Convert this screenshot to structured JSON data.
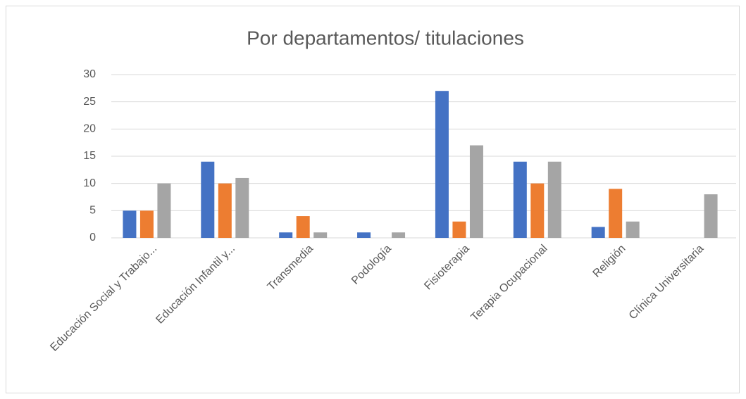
{
  "chart_data": {
    "type": "bar",
    "title": "Por departamentos/ titulaciones",
    "categories": [
      "Educación Social y Trabajo...",
      "Educación Infantil y...",
      "Transmedia",
      "Podología",
      "Fisioterapia",
      "Terapia Ocupacional",
      "Religión",
      "Clínica Universitaria"
    ],
    "series": [
      {
        "color": "#4472c4",
        "values": [
          5,
          14,
          1,
          1,
          27,
          14,
          2,
          0
        ]
      },
      {
        "color": "#ed7d31",
        "values": [
          5,
          10,
          4,
          0,
          3,
          10,
          9,
          0
        ]
      },
      {
        "color": "#a5a5a5",
        "values": [
          10,
          11,
          1,
          1,
          17,
          14,
          3,
          8
        ]
      }
    ],
    "ylim": [
      0,
      30
    ],
    "yticks": [
      0,
      5,
      10,
      15,
      20,
      25,
      30
    ],
    "grid": true
  }
}
